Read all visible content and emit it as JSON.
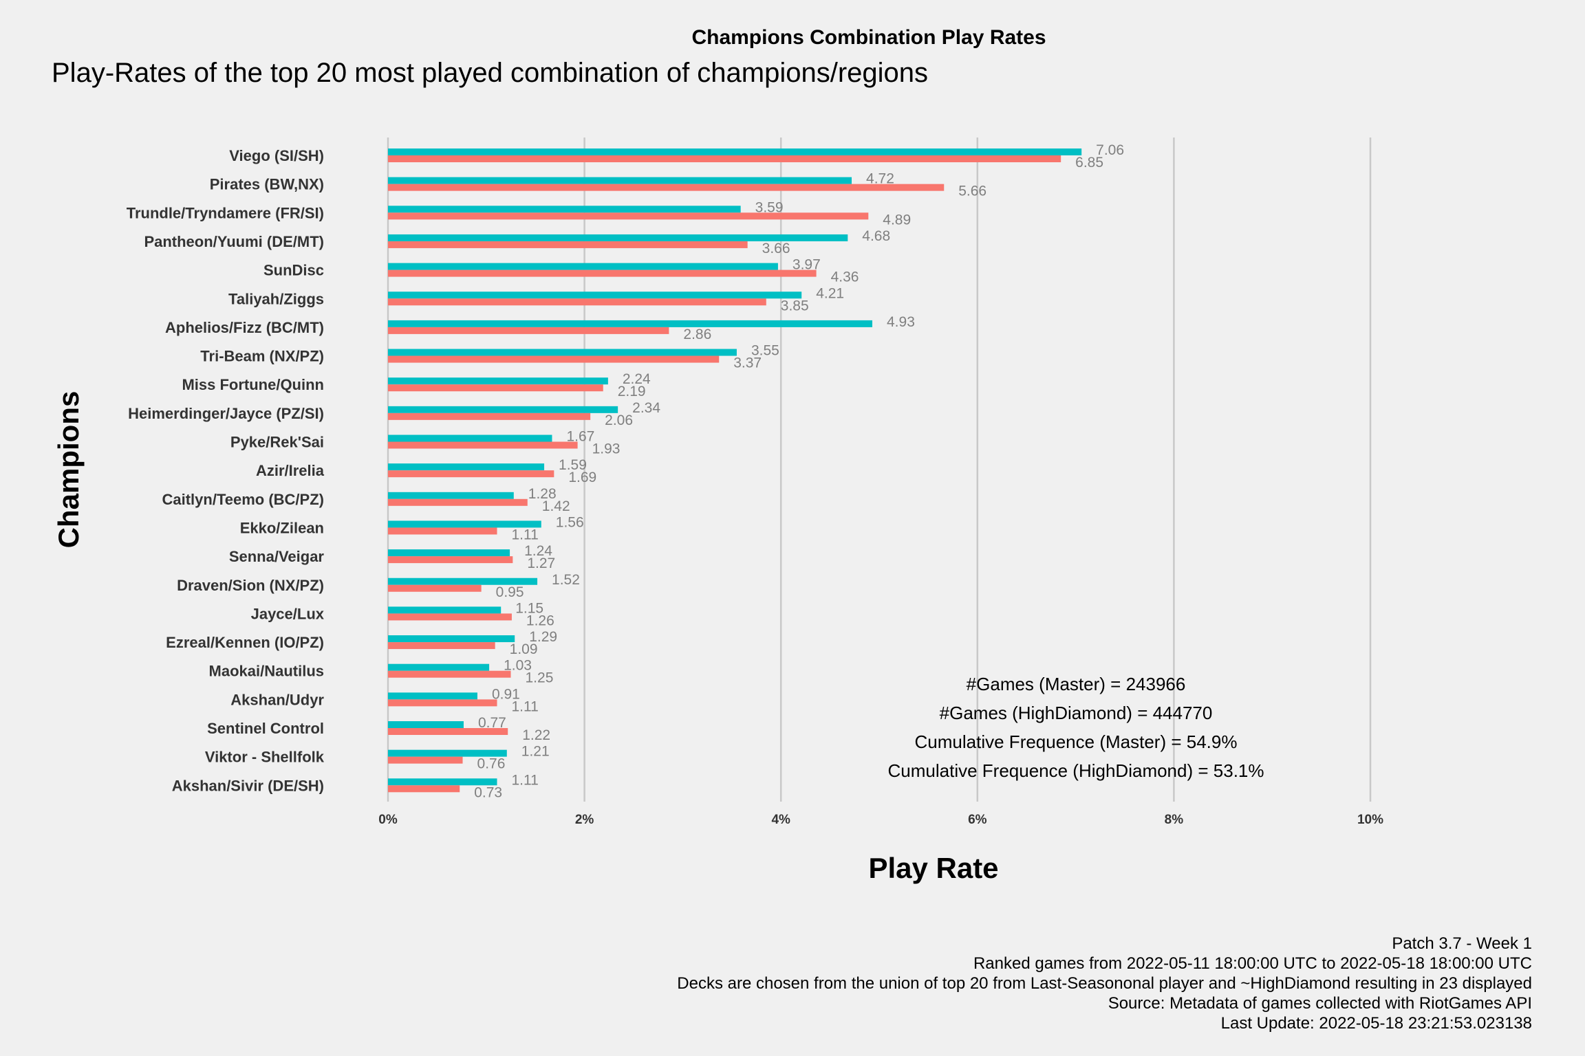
{
  "chart_data": {
    "type": "bar",
    "orientation": "horizontal",
    "title": "Champions Combination Play Rates",
    "subtitle": "Play-Rates of the top 20 most played combination of champions/regions",
    "xlabel": "Play Rate",
    "ylabel": "Champions",
    "xlim": [
      0,
      10
    ],
    "x_ticks": [
      "0%",
      "2%",
      "4%",
      "6%",
      "8%",
      "10%"
    ],
    "grid": true,
    "categories": [
      "Viego (SI/SH)",
      "Pirates (BW,NX)",
      "Trundle/Tryndamere (FR/SI)",
      "Pantheon/Yuumi (DE/MT)",
      "SunDisc",
      "Taliyah/Ziggs",
      "Aphelios/Fizz (BC/MT)",
      "Tri-Beam (NX/PZ)",
      "Miss Fortune/Quinn",
      "Heimerdinger/Jayce (PZ/SI)",
      "Pyke/Rek'Sai",
      "Azir/Irelia",
      "Caitlyn/Teemo (BC/PZ)",
      "Ekko/Zilean",
      "Senna/Veigar",
      "Draven/Sion (NX/PZ)",
      "Jayce/Lux",
      "Ezreal/Kennen (IO/PZ)",
      "Maokai/Nautilus",
      "Akshan/Udyr",
      "Sentinel Control",
      "Viktor - Shellfolk",
      "Akshan/Sivir (DE/SH)"
    ],
    "series": [
      {
        "color": "#00bfc4",
        "values": [
          7.06,
          4.72,
          3.59,
          4.68,
          3.97,
          4.21,
          4.93,
          3.55,
          2.24,
          2.34,
          1.67,
          1.59,
          1.28,
          1.56,
          1.24,
          1.52,
          1.15,
          1.29,
          1.03,
          0.91,
          0.77,
          1.21,
          1.11
        ]
      },
      {
        "color": "#f8766d",
        "values": [
          6.85,
          5.66,
          4.89,
          3.66,
          4.36,
          3.85,
          2.86,
          3.37,
          2.19,
          2.06,
          1.93,
          1.69,
          1.42,
          1.11,
          1.27,
          0.95,
          1.26,
          1.09,
          1.25,
          1.11,
          1.22,
          0.76,
          0.73
        ]
      }
    ],
    "annotations": [
      "#Games (Master) = 243966",
      "#Games (HighDiamond) = 444770",
      "Cumulative Frequence (Master) = 54.9%",
      "Cumulative Frequence (HighDiamond) = 53.1%"
    ],
    "caption": [
      "Patch 3.7 - Week 1",
      "Ranked games from 2022-05-11 18:00:00 UTC to 2022-05-18 18:00:00 UTC",
      "Decks are chosen from the union of top 20 from Last-Seasononal player and ~HighDiamond resulting in 23 displayed",
      "Source: Metadata of games collected with RiotGames API",
      "Last Update: 2022-05-18 23:21:53.023138"
    ]
  }
}
